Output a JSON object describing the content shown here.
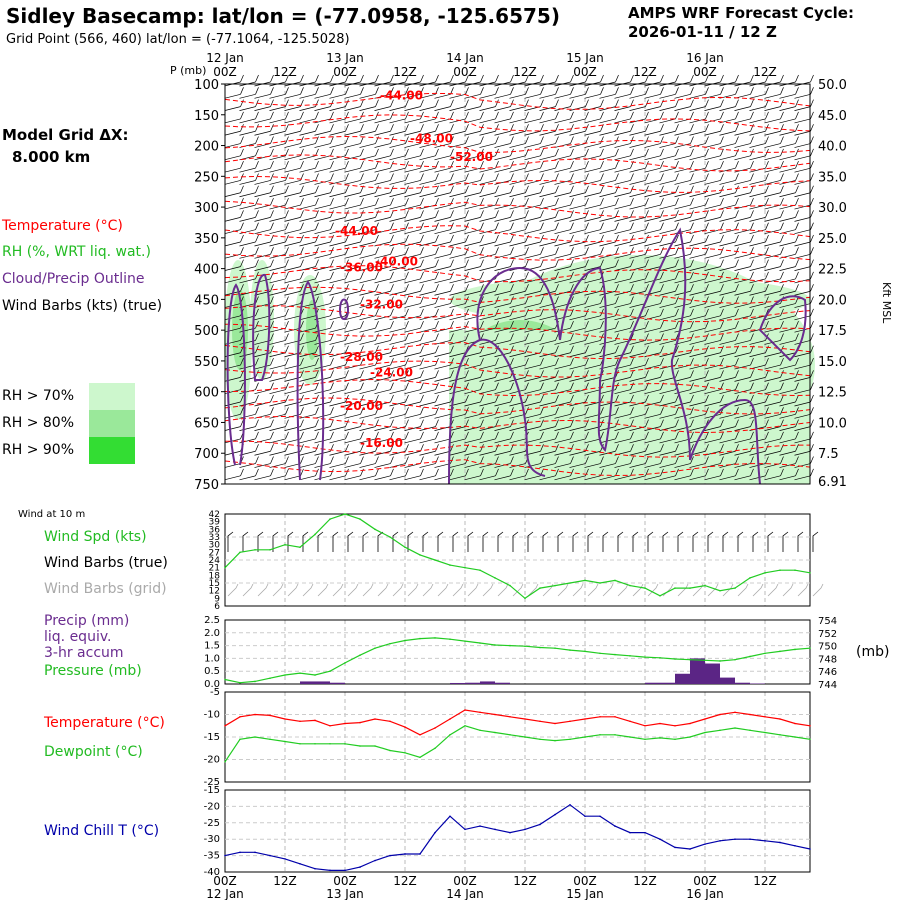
{
  "header": {
    "title": "Sidley Basecamp:  lat/lon = (-77.0958, -125.6575)",
    "subtitle": "Grid Point (566, 460) lat/lon = (-77.1064, -125.5028)",
    "cycle_line1": "AMPS WRF Forecast Cycle:",
    "cycle_line2": "2026-01-11 / 12  Z"
  },
  "left_panel": {
    "grid_label": "Model Grid ΔX:",
    "grid_value": "8.000 km",
    "legend_temperature": "Temperature (°C)",
    "legend_rh": "RH (%, WRT liq. wat.)",
    "legend_cloud": "Cloud/Precip Outline",
    "legend_wind": "Wind Barbs (kts) (true)",
    "rh_legend": [
      {
        "label": "RH > 70%",
        "color": "#cdf7cd"
      },
      {
        "label": "RH > 80%",
        "color": "#9ae89a"
      },
      {
        "label": "RH > 90%",
        "color": "#33dd33"
      }
    ],
    "wind10_title": "Wind at 10 m",
    "wind_spd_label": "Wind Spd (kts)",
    "wind_barbs_true": "Wind Barbs (true)",
    "wind_barbs_grid": "Wind Barbs (grid)",
    "precip_label1": "Precip (mm)",
    "precip_label2": "liq. equiv.",
    "precip_label3": "3-hr accum",
    "pressure_label": "Pressure (mb)",
    "pressure_unit": "(mb)",
    "temp_label": "Temperature (°C)",
    "dew_label": "Dewpoint (°C)",
    "windchill_label": "Wind Chill T (°C)"
  },
  "colors": {
    "temperature": "#ff0000",
    "rh_green": "#22cc22",
    "cloud_outline": "#6a2c8f",
    "wind": "#000000",
    "wind_grid": "#aaaaaa",
    "dewpoint": "#22cc22",
    "windchill": "#0000aa",
    "precip_bar": "#5b2585"
  },
  "chart_data": [
    {
      "type": "line",
      "panel": "upper-air cross section",
      "time_labels": [
        "00Z",
        "12Z",
        "00Z",
        "12Z",
        "00Z",
        "12Z",
        "00Z",
        "12Z",
        "00Z",
        "12Z"
      ],
      "day_labels": [
        "12 Jan",
        "13 Jan",
        "14 Jan",
        "15 Jan",
        "16 Jan"
      ],
      "p_label": "P (mb)",
      "pressure_ticks": [
        "100",
        "150",
        "200",
        "250",
        "300",
        "350",
        "400",
        "450",
        "500",
        "550",
        "600",
        "650",
        "700",
        "750"
      ],
      "height_ticks": [
        "50.0",
        "45.0",
        "40.0",
        "35.0",
        "30.0",
        "25.0",
        "22.5",
        "20.0",
        "17.5",
        "15.0",
        "12.5",
        "10.0",
        "7.5",
        "6.91"
      ],
      "height_unit": "Kft MSL",
      "ylim": [
        100,
        750
      ],
      "temperature_labels": [
        {
          "text": "-44.00",
          "t": 31,
          "p": 125
        },
        {
          "text": "-48.00",
          "t": 37,
          "p": 195
        },
        {
          "text": "-52.00",
          "t": 45,
          "p": 225
        },
        {
          "text": "-44.00",
          "t": 22,
          "p": 345
        },
        {
          "text": "-36.00",
          "t": 23,
          "p": 405
        },
        {
          "text": "-40.00",
          "t": 30,
          "p": 395
        },
        {
          "text": "-32.00",
          "t": 27,
          "p": 465
        },
        {
          "text": "-28.00",
          "t": 23,
          "p": 550
        },
        {
          "text": "-24.00",
          "t": 29,
          "p": 575
        },
        {
          "text": "-20.00",
          "t": 23,
          "p": 630
        },
        {
          "text": "-16.00",
          "t": 27,
          "p": 690
        }
      ]
    },
    {
      "type": "line",
      "panel": "10 m wind speed",
      "y_ticks": [
        "42",
        "39",
        "36",
        "33",
        "30",
        "27",
        "24",
        "21",
        "18",
        "15",
        "12",
        "9",
        "6"
      ],
      "ylim": [
        6,
        42
      ],
      "x_hours": [
        0,
        3,
        6,
        9,
        12,
        15,
        18,
        21,
        24,
        27,
        30,
        33,
        36,
        39,
        42,
        45,
        48,
        51,
        54,
        57,
        60,
        63,
        66,
        69,
        72,
        75,
        78,
        81,
        84,
        87,
        90,
        93,
        96,
        99,
        102,
        105,
        108,
        111,
        114,
        117
      ],
      "values": [
        21,
        27,
        28,
        28,
        30,
        29,
        34,
        40,
        42,
        40,
        36,
        33,
        29,
        26,
        24,
        22,
        21,
        20,
        17,
        14,
        9,
        13,
        14,
        15,
        16,
        15,
        16,
        14,
        13,
        10,
        13,
        13,
        14,
        12,
        13,
        17,
        19,
        20,
        20,
        19
      ]
    },
    {
      "type": "bar",
      "panel": "precip and pressure",
      "precip_ticks": [
        "2.5",
        "2.0",
        "1.5",
        "1.0",
        "0.5",
        "0.0"
      ],
      "precip_ylim": [
        0,
        2.5
      ],
      "pressure_ticks": [
        "754",
        "752",
        "750",
        "748",
        "746",
        "744"
      ],
      "pressure_ylim": [
        744,
        754
      ],
      "x_hours": [
        0,
        3,
        6,
        9,
        12,
        15,
        18,
        21,
        24,
        27,
        30,
        33,
        36,
        39,
        42,
        45,
        48,
        51,
        54,
        57,
        60,
        63,
        66,
        69,
        72,
        75,
        78,
        81,
        84,
        87,
        90,
        93,
        96,
        99,
        102,
        105,
        108,
        111,
        114,
        117
      ],
      "precip": [
        0,
        0,
        0,
        0,
        0,
        0.1,
        0.1,
        0.05,
        0,
        0,
        0,
        0,
        0,
        0,
        0,
        0.04,
        0.05,
        0.1,
        0.05,
        0,
        0,
        0,
        0,
        0,
        0,
        0,
        0,
        0,
        0.05,
        0.05,
        0.4,
        1.0,
        0.8,
        0.25,
        0.05,
        0.02,
        0,
        0,
        0,
        0
      ],
      "pressure": [
        744.7,
        744.2,
        744.4,
        744.9,
        745.4,
        745.7,
        745.4,
        746,
        747.3,
        748.5,
        749.6,
        750.3,
        750.8,
        751.1,
        751.2,
        751,
        750.7,
        750.4,
        750.1,
        750,
        749.9,
        749.7,
        749.6,
        749.3,
        749.1,
        748.8,
        748.6,
        748.4,
        748.2,
        748.1,
        747.9,
        747.8,
        747.7,
        747.6,
        747.8,
        748.3,
        748.8,
        749.1,
        749.4,
        749.6
      ]
    },
    {
      "type": "line",
      "panel": "temperature and dewpoint",
      "y_ticks": [
        "-5",
        "-10",
        "-15",
        "-20",
        "-25"
      ],
      "ylim": [
        -25,
        -5
      ],
      "x_hours": [
        0,
        3,
        6,
        9,
        12,
        15,
        18,
        21,
        24,
        27,
        30,
        33,
        36,
        39,
        42,
        45,
        48,
        51,
        54,
        57,
        60,
        63,
        66,
        69,
        72,
        75,
        78,
        81,
        84,
        87,
        90,
        93,
        96,
        99,
        102,
        105,
        108,
        111,
        114,
        117
      ],
      "series": [
        {
          "name": "Temperature",
          "values": [
            -12.5,
            -10.5,
            -10.0,
            -10.2,
            -11.0,
            -11.5,
            -11.3,
            -12.5,
            -12.0,
            -11.8,
            -11.0,
            -11.5,
            -12.8,
            -14.5,
            -13.0,
            -11.0,
            -9.0,
            -9.5,
            -10.0,
            -10.5,
            -11.0,
            -11.5,
            -12.0,
            -11.5,
            -11.0,
            -10.5,
            -10.5,
            -11.5,
            -12.5,
            -12.0,
            -12.5,
            -12.0,
            -11.0,
            -10.0,
            -9.5,
            -10.0,
            -10.5,
            -11.0,
            -12.0,
            -12.5
          ]
        },
        {
          "name": "Dewpoint",
          "values": [
            -20.5,
            -15.5,
            -15.0,
            -15.5,
            -16.0,
            -16.5,
            -16.5,
            -16.5,
            -16.5,
            -17.0,
            -17.0,
            -18.0,
            -18.5,
            -19.5,
            -17.5,
            -14.5,
            -12.5,
            -13.5,
            -14.0,
            -14.5,
            -15.0,
            -15.5,
            -15.8,
            -15.5,
            -15.0,
            -14.5,
            -14.5,
            -15.0,
            -15.5,
            -15.2,
            -15.5,
            -15.0,
            -14.0,
            -13.5,
            -13.0,
            -13.5,
            -14.0,
            -14.5,
            -15.0,
            -15.5
          ]
        }
      ]
    },
    {
      "type": "line",
      "panel": "wind chill",
      "y_ticks": [
        "-15",
        "-20",
        "-25",
        "-30",
        "-35",
        "-40"
      ],
      "ylim": [
        -40,
        -15
      ],
      "x_hours": [
        0,
        3,
        6,
        9,
        12,
        15,
        18,
        21,
        24,
        27,
        30,
        33,
        36,
        39,
        42,
        45,
        48,
        51,
        54,
        57,
        60,
        63,
        66,
        69,
        72,
        75,
        78,
        81,
        84,
        87,
        90,
        93,
        96,
        99,
        102,
        105,
        108,
        111,
        114,
        117
      ],
      "values": [
        -35,
        -34,
        -34,
        -35,
        -36,
        -37.5,
        -39,
        -39.5,
        -39.5,
        -38.5,
        -36.5,
        -35,
        -34.5,
        -34.5,
        -28,
        -23,
        -27,
        -26,
        -27,
        -28,
        -27,
        -25.5,
        -22.5,
        -19.5,
        -23,
        -23,
        -26,
        -28,
        -28,
        -30,
        -32.5,
        -33,
        -31.5,
        -30.5,
        -30,
        -30,
        -30.5,
        -31,
        -32,
        -33
      ]
    }
  ]
}
